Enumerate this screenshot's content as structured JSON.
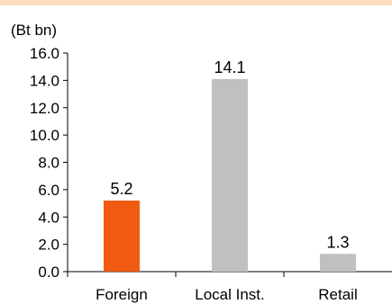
{
  "colors": {
    "top_band": "#fcdcbc",
    "highlight": "#f05a12",
    "bar": "#c0c0c0",
    "axis": "#000000"
  },
  "chart_data": {
    "type": "bar",
    "unit_label": "(Bt bn)",
    "categories": [
      "Foreign",
      "Local Inst.",
      "Retail"
    ],
    "values": [
      5.2,
      14.1,
      1.3
    ],
    "data_labels": [
      "5.2",
      "14.1",
      "1.3"
    ],
    "highlight_index": 0,
    "ylim": [
      0,
      16
    ],
    "yticks": [
      "0.0",
      "2.0",
      "4.0",
      "6.0",
      "8.0",
      "10.0",
      "12.0",
      "14.0",
      "16.0"
    ],
    "grid": false,
    "legend": "none"
  }
}
